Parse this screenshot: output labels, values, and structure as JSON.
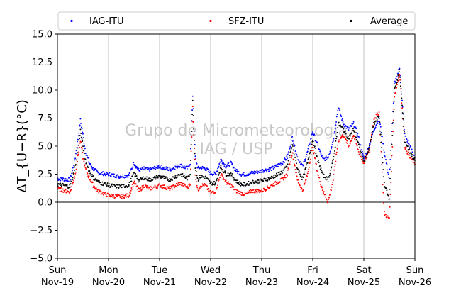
{
  "chart_data": {
    "type": "scatter",
    "title": "",
    "xlabel": "",
    "ylabel": "ΔT_{U−R}(°C)",
    "ylim": [
      -5.0,
      15.0
    ],
    "xlim": [
      0,
      7
    ],
    "grid": "vertical",
    "legend_placement": "top (above plot), 3 columns",
    "watermark": [
      "Grupo de Micrometeorologia",
      "IAG / USP"
    ],
    "x_ticks": [
      {
        "value": 0,
        "day": "Sun",
        "date": "Nov-19"
      },
      {
        "value": 1,
        "day": "Mon",
        "date": "Nov-20"
      },
      {
        "value": 2,
        "day": "Tue",
        "date": "Nov-21"
      },
      {
        "value": 3,
        "day": "Wed",
        "date": "Nov-22"
      },
      {
        "value": 4,
        "day": "Thu",
        "date": "Nov-23"
      },
      {
        "value": 5,
        "day": "Fri",
        "date": "Nov-24"
      },
      {
        "value": 6,
        "day": "Sat",
        "date": "Nov-25"
      },
      {
        "value": 7,
        "day": "Sun",
        "date": "Nov-26"
      }
    ],
    "y_ticks": [
      "15.0",
      "12.5",
      "10.0",
      "7.5",
      "5.0",
      "2.5",
      "0.0",
      "−2.5",
      "−5.0"
    ],
    "y_tick_values": [
      15.0,
      12.5,
      10.0,
      7.5,
      5.0,
      2.5,
      0.0,
      -2.5,
      -5.0
    ],
    "series": [
      {
        "name": "IAG-ITU",
        "color": "#0000ff"
      },
      {
        "name": "SFZ-ITU",
        "color": "#ff0000"
      },
      {
        "name": "Average",
        "color": "#000000"
      }
    ],
    "x": [
      0.0,
      0.25,
      0.35,
      0.45,
      0.5,
      0.55,
      0.62,
      0.7,
      0.8,
      1.0,
      1.2,
      1.4,
      1.5,
      1.6,
      1.7,
      1.8,
      2.0,
      2.2,
      2.4,
      2.55,
      2.6,
      2.65,
      2.7,
      2.75,
      2.8,
      2.9,
      3.0,
      3.1,
      3.2,
      3.3,
      3.4,
      3.5,
      3.6,
      3.7,
      3.8,
      4.0,
      4.2,
      4.4,
      4.5,
      4.6,
      4.7,
      4.8,
      4.9,
      5.0,
      5.1,
      5.2,
      5.3,
      5.4,
      5.5,
      5.6,
      5.7,
      5.8,
      5.9,
      6.0,
      6.1,
      6.2,
      6.3,
      6.4,
      6.5,
      6.6,
      6.7,
      6.8,
      6.9,
      7.0
    ],
    "series_values": {
      "IAG-ITU": [
        2.1,
        2.0,
        4.0,
        7.3,
        6.0,
        4.5,
        3.5,
        3.0,
        2.6,
        2.5,
        2.3,
        2.4,
        3.5,
        2.8,
        3.0,
        2.9,
        3.2,
        2.9,
        3.3,
        3.0,
        3.5,
        9.5,
        4.0,
        3.0,
        3.1,
        3.0,
        2.6,
        2.5,
        3.8,
        3.2,
        3.5,
        2.8,
        2.5,
        2.5,
        2.6,
        2.8,
        3.0,
        3.5,
        4.0,
        5.8,
        4.0,
        3.2,
        4.5,
        6.3,
        5.0,
        3.8,
        4.0,
        5.5,
        8.5,
        7.0,
        6.5,
        7.0,
        5.8,
        3.8,
        5.0,
        6.5,
        7.5,
        4.5,
        2.0,
        10.5,
        12.0,
        6.0,
        5.0,
        4.0
      ],
      "SFZ-ITU": [
        1.2,
        0.9,
        2.5,
        5.5,
        4.0,
        3.0,
        2.2,
        1.5,
        1.0,
        0.6,
        0.5,
        0.6,
        1.8,
        1.0,
        1.5,
        1.2,
        1.5,
        1.2,
        1.7,
        1.3,
        1.7,
        8.5,
        2.5,
        1.0,
        1.5,
        1.5,
        0.8,
        1.0,
        2.5,
        1.8,
        1.5,
        1.0,
        0.8,
        0.7,
        1.0,
        1.0,
        1.5,
        2.0,
        2.5,
        4.5,
        2.0,
        1.0,
        2.5,
        5.0,
        2.5,
        1.0,
        0.0,
        2.0,
        5.5,
        6.0,
        5.0,
        6.0,
        4.5,
        3.5,
        4.5,
        7.5,
        8.0,
        -1.0,
        -1.5,
        9.5,
        11.5,
        5.0,
        4.0,
        3.5
      ],
      "Average": [
        1.6,
        1.4,
        3.2,
        6.4,
        5.0,
        3.7,
        2.8,
        2.2,
        1.8,
        1.5,
        1.4,
        1.5,
        2.6,
        1.9,
        2.2,
        2.0,
        2.3,
        2.0,
        2.5,
        2.1,
        2.6,
        9.0,
        3.2,
        2.0,
        2.3,
        2.2,
        1.7,
        1.7,
        3.1,
        2.5,
        2.5,
        1.9,
        1.6,
        1.6,
        1.8,
        1.9,
        2.2,
        2.7,
        3.2,
        5.1,
        3.0,
        2.1,
        3.5,
        5.6,
        3.7,
        2.4,
        2.0,
        3.7,
        7.0,
        6.5,
        5.7,
        6.5,
        5.1,
        3.6,
        4.7,
        7.0,
        7.7,
        1.7,
        0.2,
        10.0,
        11.7,
        5.5,
        4.5,
        3.7
      ]
    }
  },
  "legend": {
    "items": [
      {
        "label": "IAG-ITU",
        "color": "#0000ff"
      },
      {
        "label": "SFZ-ITU",
        "color": "#ff0000"
      },
      {
        "label": "Average",
        "color": "#000000"
      }
    ]
  }
}
